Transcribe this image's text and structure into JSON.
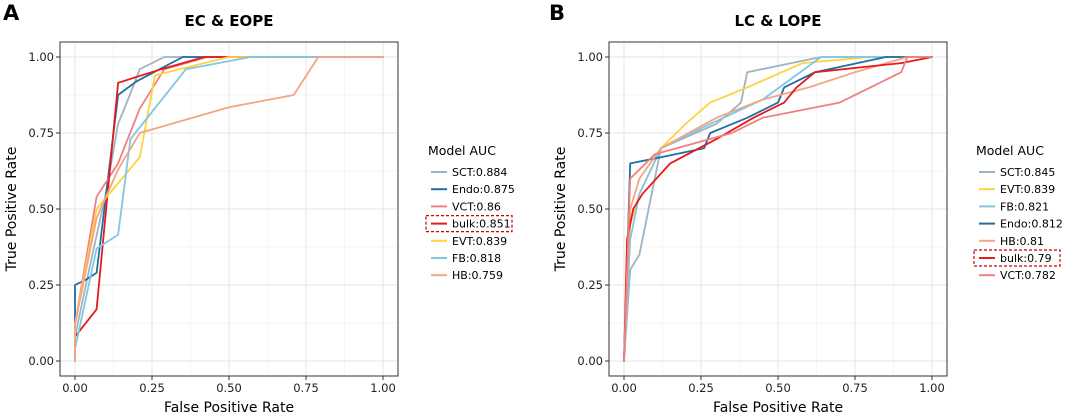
{
  "chart_data": [
    {
      "type": "line",
      "panel_label": "A",
      "title": "EC & EOPE",
      "xlabel": "False Positive Rate",
      "ylabel": "True Positive Rate",
      "xlim": [
        0,
        1
      ],
      "ylim": [
        0,
        1
      ],
      "ticks": [
        "0.00",
        "0.25",
        "0.50",
        "0.75",
        "1.00"
      ],
      "grid": true,
      "legend": {
        "title": "Model AUC",
        "placement": "right",
        "highlight": "bulk"
      },
      "series": [
        {
          "name": "SCT",
          "label": "SCT:0.884",
          "color": "#9fb3c2",
          "points": [
            [
              0,
              0
            ],
            [
              0,
              0.08
            ],
            [
              0.05,
              0.32
            ],
            [
              0.1,
              0.55
            ],
            [
              0.14,
              0.78
            ],
            [
              0.18,
              0.88
            ],
            [
              0.21,
              0.96
            ],
            [
              0.29,
              1
            ],
            [
              1,
              1
            ]
          ]
        },
        {
          "name": "Endo",
          "label": "Endo:0.875",
          "color": "#1f6ea6",
          "points": [
            [
              0,
              0
            ],
            [
              0,
              0.25
            ],
            [
              0.04,
              0.27
            ],
            [
              0.07,
              0.29
            ],
            [
              0.14,
              0.875
            ],
            [
              0.2,
              0.92
            ],
            [
              0.35,
              1
            ],
            [
              1,
              1
            ]
          ]
        },
        {
          "name": "VCT",
          "label": "VCT:0.86",
          "color": "#f08080",
          "points": [
            [
              0,
              0
            ],
            [
              0,
              0.12
            ],
            [
              0.07,
              0.54
            ],
            [
              0.14,
              0.65
            ],
            [
              0.21,
              0.83
            ],
            [
              0.29,
              0.96
            ],
            [
              0.43,
              1
            ],
            [
              1,
              1
            ]
          ]
        },
        {
          "name": "bulk",
          "label": "bulk:0.851",
          "color": "#e41a1c",
          "points": [
            [
              0,
              0
            ],
            [
              0,
              0.08
            ],
            [
              0.07,
              0.17
            ],
            [
              0.14,
              0.915
            ],
            [
              0.28,
              0.96
            ],
            [
              0.42,
              1
            ],
            [
              1,
              1
            ]
          ]
        },
        {
          "name": "EVT",
          "label": "EVT:0.839",
          "color": "#ffd23f",
          "points": [
            [
              0,
              0
            ],
            [
              0,
              0.12
            ],
            [
              0.07,
              0.5
            ],
            [
              0.21,
              0.67
            ],
            [
              0.26,
              0.94
            ],
            [
              0.5,
              1
            ],
            [
              1,
              1
            ]
          ]
        },
        {
          "name": "FB",
          "label": "FB:0.818",
          "color": "#7ec8e3",
          "points": [
            [
              0,
              0
            ],
            [
              0,
              0.04
            ],
            [
              0.07,
              0.37
            ],
            [
              0.14,
              0.415
            ],
            [
              0.18,
              0.73
            ],
            [
              0.36,
              0.96
            ],
            [
              0.57,
              1
            ],
            [
              1,
              1
            ]
          ]
        },
        {
          "name": "HB",
          "label": "HB:0.759",
          "color": "#f4a582",
          "points": [
            [
              0,
              0
            ],
            [
              0,
              0.12
            ],
            [
              0.07,
              0.47
            ],
            [
              0.14,
              0.63
            ],
            [
              0.21,
              0.75
            ],
            [
              0.5,
              0.835
            ],
            [
              0.71,
              0.875
            ],
            [
              0.79,
              1
            ],
            [
              1,
              1
            ]
          ]
        }
      ]
    },
    {
      "type": "line",
      "panel_label": "B",
      "title": "LC & LOPE",
      "xlabel": "False Positive Rate",
      "ylabel": "True Positive Rate",
      "xlim": [
        0,
        1
      ],
      "ylim": [
        0,
        1
      ],
      "ticks": [
        "0.00",
        "0.25",
        "0.50",
        "0.75",
        "1.00"
      ],
      "grid": true,
      "legend": {
        "title": "Model AUC",
        "placement": "right",
        "highlight": "bulk"
      },
      "series": [
        {
          "name": "SCT",
          "label": "SCT:0.845",
          "color": "#9fb3c2",
          "points": [
            [
              0,
              0
            ],
            [
              0.02,
              0.3
            ],
            [
              0.05,
              0.35
            ],
            [
              0.09,
              0.55
            ],
            [
              0.12,
              0.7
            ],
            [
              0.3,
              0.78
            ],
            [
              0.38,
              0.85
            ],
            [
              0.4,
              0.95
            ],
            [
              0.64,
              1
            ],
            [
              1,
              1
            ]
          ]
        },
        {
          "name": "EVT",
          "label": "EVT:0.839",
          "color": "#ffd23f",
          "points": [
            [
              0,
              0
            ],
            [
              0.02,
              0.45
            ],
            [
              0.05,
              0.55
            ],
            [
              0.12,
              0.7
            ],
            [
              0.2,
              0.78
            ],
            [
              0.28,
              0.85
            ],
            [
              0.4,
              0.9
            ],
            [
              0.58,
              0.98
            ],
            [
              0.8,
              1
            ],
            [
              1,
              1
            ]
          ]
        },
        {
          "name": "FB",
          "label": "FB:0.821",
          "color": "#7ec8e3",
          "points": [
            [
              0,
              0
            ],
            [
              0.02,
              0.4
            ],
            [
              0.05,
              0.55
            ],
            [
              0.12,
              0.7
            ],
            [
              0.28,
              0.78
            ],
            [
              0.45,
              0.86
            ],
            [
              0.64,
              1
            ],
            [
              1,
              1
            ]
          ]
        },
        {
          "name": "Endo",
          "label": "Endo:0.812",
          "color": "#1f6ea6",
          "points": [
            [
              0,
              0
            ],
            [
              0.02,
              0.65
            ],
            [
              0.12,
              0.67
            ],
            [
              0.26,
              0.7
            ],
            [
              0.28,
              0.75
            ],
            [
              0.4,
              0.8
            ],
            [
              0.5,
              0.85
            ],
            [
              0.52,
              0.9
            ],
            [
              0.62,
              0.95
            ],
            [
              0.85,
              1
            ],
            [
              1,
              1
            ]
          ]
        },
        {
          "name": "HB",
          "label": "HB:0.81",
          "color": "#f4a582",
          "points": [
            [
              0,
              0
            ],
            [
              0.02,
              0.5
            ],
            [
              0.05,
              0.6
            ],
            [
              0.12,
              0.7
            ],
            [
              0.3,
              0.8
            ],
            [
              0.45,
              0.86
            ],
            [
              0.6,
              0.9
            ],
            [
              0.75,
              0.95
            ],
            [
              0.92,
              1
            ],
            [
              1,
              1
            ]
          ]
        },
        {
          "name": "bulk",
          "label": "bulk:0.79",
          "color": "#e41a1c",
          "points": [
            [
              0,
              0
            ],
            [
              0.01,
              0.4
            ],
            [
              0.03,
              0.5
            ],
            [
              0.06,
              0.55
            ],
            [
              0.15,
              0.65
            ],
            [
              0.3,
              0.73
            ],
            [
              0.42,
              0.8
            ],
            [
              0.52,
              0.85
            ],
            [
              0.56,
              0.9
            ],
            [
              0.62,
              0.95
            ],
            [
              0.9,
              0.98
            ],
            [
              1,
              1
            ]
          ]
        },
        {
          "name": "VCT",
          "label": "VCT:0.782",
          "color": "#f08080",
          "points": [
            [
              0,
              0
            ],
            [
              0.02,
              0.6
            ],
            [
              0.1,
              0.68
            ],
            [
              0.35,
              0.75
            ],
            [
              0.45,
              0.8
            ],
            [
              0.7,
              0.85
            ],
            [
              0.9,
              0.95
            ],
            [
              0.92,
              1
            ],
            [
              1,
              1
            ]
          ]
        }
      ]
    }
  ]
}
